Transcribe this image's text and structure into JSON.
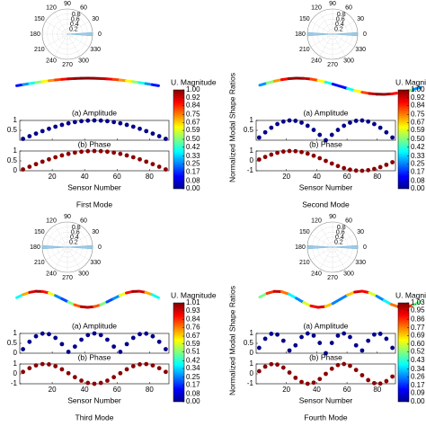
{
  "chart_data": [
    {
      "type": "scatter",
      "caption": "First Mode",
      "x": [
        2,
        6,
        10,
        14,
        18,
        22,
        26,
        30,
        34,
        38,
        42,
        46,
        50,
        54,
        58,
        62,
        66,
        70,
        74,
        78,
        82,
        86,
        90
      ],
      "xlim": [
        0,
        92
      ],
      "xticks": [
        20,
        40,
        60,
        80
      ],
      "xlabel": "Sensor Number",
      "amplitude": {
        "title": "(a) Amplitude",
        "color": "#00008b",
        "ylim": [
          0,
          1
        ],
        "yticks": [
          0.5,
          1
        ],
        "values": [
          0.068,
          0.203,
          0.335,
          0.46,
          0.577,
          0.683,
          0.776,
          0.854,
          0.917,
          0.963,
          0.991,
          1,
          0.991,
          0.963,
          0.917,
          0.854,
          0.776,
          0.683,
          0.577,
          0.46,
          0.335,
          0.203,
          0.068
        ]
      },
      "phase": {
        "title": "(b) Phase",
        "color": "#8b0000",
        "ylim": [
          0,
          1
        ],
        "yticks": [
          0,
          0.5,
          1
        ],
        "values": [
          0.068,
          0.203,
          0.335,
          0.46,
          0.577,
          0.683,
          0.776,
          0.854,
          0.917,
          0.963,
          0.991,
          1,
          0.991,
          0.963,
          0.917,
          0.854,
          0.776,
          0.683,
          0.577,
          0.46,
          0.335,
          0.203,
          0.068
        ]
      },
      "colorbar": {
        "title": "U. Magnitude",
        "lim": [
          0,
          1
        ],
        "ticks": [
          {
            "value": 1,
            "label": "1.00"
          },
          {
            "value": 0.92,
            "label": "0.92"
          },
          {
            "value": 0.84,
            "label": "0.84"
          },
          {
            "value": 0.75,
            "label": "0.75"
          },
          {
            "value": 0.67,
            "label": "0.67"
          },
          {
            "value": 0.59,
            "label": "0.59"
          },
          {
            "value": 0.5,
            "label": "0.50"
          },
          {
            "value": 0.42,
            "label": "0.42"
          },
          {
            "value": 0.33,
            "label": "0.33"
          },
          {
            "value": 0.25,
            "label": "0.25"
          },
          {
            "value": 0.17,
            "label": "0.17"
          },
          {
            "value": 0.08,
            "label": "0.08"
          },
          {
            "value": 0,
            "label": "0.00"
          }
        ]
      },
      "polar": {
        "theta": [
          0
        ],
        "r": [
          1
        ],
        "rlim": [
          0,
          1
        ],
        "rticks": [
          0.2,
          0.4,
          0.6,
          0.8
        ],
        "thetaticks": [
          0,
          30,
          60,
          90,
          120,
          150,
          180,
          210,
          240,
          270,
          300,
          330
        ],
        "color": "#9ecae1"
      }
    },
    {
      "type": "scatter",
      "caption": "Second Mode",
      "ylabel": "Normalized Modal Shape Ratios",
      "x": [
        2,
        6,
        10,
        14,
        18,
        22,
        26,
        30,
        34,
        38,
        42,
        46,
        50,
        54,
        58,
        62,
        66,
        70,
        74,
        78,
        82,
        86,
        90
      ],
      "xlim": [
        0,
        92
      ],
      "xticks": [
        20,
        40,
        60,
        80
      ],
      "xlabel": "Sensor Number",
      "amplitude": {
        "title": "(a) Amplitude",
        "color": "#00008b",
        "ylim": [
          0,
          1
        ],
        "yticks": [
          0.5,
          1
        ],
        "values": [
          0.136,
          0.398,
          0.631,
          0.817,
          0.942,
          0.998,
          0.979,
          0.888,
          0.731,
          0.52,
          0.27,
          0,
          0.27,
          0.52,
          0.731,
          0.888,
          0.979,
          0.998,
          0.942,
          0.817,
          0.631,
          0.398,
          0.136
        ]
      },
      "phase": {
        "title": "(b) Phase",
        "color": "#8b0000",
        "ylim": [
          -1,
          1
        ],
        "yticks": [
          -1,
          0,
          1
        ],
        "values": [
          0.136,
          0.398,
          0.631,
          0.817,
          0.942,
          0.998,
          0.979,
          0.888,
          0.731,
          0.52,
          0.27,
          0,
          -0.27,
          -0.52,
          -0.731,
          -0.888,
          -0.979,
          -0.998,
          -0.942,
          -0.817,
          -0.631,
          -0.398,
          -0.136
        ]
      },
      "colorbar": {
        "title": "U. Magnitude",
        "lim": [
          0,
          1
        ],
        "ticks": [
          {
            "value": 1,
            "label": "1.00"
          },
          {
            "value": 0.92,
            "label": "0.92"
          },
          {
            "value": 0.84,
            "label": "0.84"
          },
          {
            "value": 0.75,
            "label": "0.75"
          },
          {
            "value": 0.67,
            "label": "0.67"
          },
          {
            "value": 0.59,
            "label": "0.59"
          },
          {
            "value": 0.5,
            "label": "0.50"
          },
          {
            "value": 0.42,
            "label": "0.42"
          },
          {
            "value": 0.33,
            "label": "0.33"
          },
          {
            "value": 0.25,
            "label": "0.25"
          },
          {
            "value": 0.17,
            "label": "0.17"
          },
          {
            "value": 0.08,
            "label": "0.08"
          },
          {
            "value": 0,
            "label": "0.00"
          }
        ]
      },
      "polar": {
        "theta": [
          0,
          180
        ],
        "r": [
          1,
          1
        ],
        "rlim": [
          0,
          1
        ],
        "rticks": [
          0.2,
          0.4,
          0.6,
          0.8
        ],
        "thetaticks": [
          0,
          30,
          60,
          90,
          120,
          150,
          180,
          210,
          240,
          270,
          300,
          330
        ],
        "color": "#9ecae1"
      }
    },
    {
      "type": "scatter",
      "caption": "Third Mode",
      "x": [
        2,
        6,
        10,
        14,
        18,
        22,
        26,
        30,
        34,
        38,
        42,
        46,
        50,
        54,
        58,
        62,
        66,
        70,
        74,
        78,
        82,
        86,
        90
      ],
      "xlim": [
        0,
        92
      ],
      "xticks": [
        20,
        40,
        60,
        80
      ],
      "xlabel": "Sensor Number",
      "amplitude": {
        "title": "(a) Amplitude",
        "color": "#00008b",
        "ylim": [
          0,
          1
        ],
        "yticks": [
          0,
          0.5,
          1
        ],
        "values": [
          0.203,
          0.577,
          0.854,
          0.991,
          0.963,
          0.776,
          0.46,
          0.068,
          0.335,
          0.683,
          0.917,
          1,
          0.917,
          0.683,
          0.335,
          0.068,
          0.46,
          0.776,
          0.963,
          0.991,
          0.854,
          0.577,
          0.203
        ]
      },
      "phase": {
        "title": "(b) Phase",
        "color": "#8b0000",
        "ylim": [
          -1,
          1
        ],
        "yticks": [
          -1,
          0,
          1
        ],
        "values": [
          0.203,
          0.577,
          0.854,
          0.991,
          0.963,
          0.776,
          0.46,
          0.068,
          -0.335,
          -0.683,
          -0.917,
          -1,
          -0.917,
          -0.683,
          -0.335,
          0.068,
          0.46,
          0.776,
          0.963,
          0.991,
          0.854,
          0.577,
          0.203
        ]
      },
      "colorbar": {
        "title": "U. Magnitude",
        "lim": [
          0,
          1.01
        ],
        "ticks": [
          {
            "value": 1.01,
            "label": "1.01"
          },
          {
            "value": 0.93,
            "label": "0.93"
          },
          {
            "value": 0.84,
            "label": "0.84"
          },
          {
            "value": 0.76,
            "label": "0.76"
          },
          {
            "value": 0.67,
            "label": "0.67"
          },
          {
            "value": 0.59,
            "label": "0.59"
          },
          {
            "value": 0.51,
            "label": "0.51"
          },
          {
            "value": 0.42,
            "label": "0.42"
          },
          {
            "value": 0.34,
            "label": "0.34"
          },
          {
            "value": 0.25,
            "label": "0.25"
          },
          {
            "value": 0.17,
            "label": "0.17"
          },
          {
            "value": 0.08,
            "label": "0.08"
          },
          {
            "value": 0,
            "label": "0.00"
          }
        ]
      },
      "polar": {
        "theta": [
          0,
          180
        ],
        "r": [
          1,
          1
        ],
        "rlim": [
          0,
          1
        ],
        "rticks": [
          0.2,
          0.4,
          0.6,
          0.8
        ],
        "thetaticks": [
          0,
          30,
          60,
          90,
          120,
          150,
          180,
          210,
          240,
          270,
          300,
          330
        ],
        "color": "#9ecae1"
      }
    },
    {
      "type": "scatter",
      "caption": "Fourth Mode",
      "ylabel": "Normalized Modal Shape Ratios",
      "x": [
        2,
        6,
        10,
        14,
        18,
        22,
        26,
        30,
        34,
        38,
        42,
        46,
        50,
        54,
        58,
        62,
        66,
        70,
        74,
        78,
        82,
        86,
        90
      ],
      "xlim": [
        0,
        92
      ],
      "xticks": [
        20,
        40,
        60,
        80
      ],
      "xlabel": "Sensor Number",
      "amplitude": {
        "title": "(a) Amplitude",
        "color": "#00008b",
        "ylim": [
          0,
          1
        ],
        "yticks": [
          0,
          0.5,
          1
        ],
        "values": [
          0.27,
          0.731,
          0.979,
          0.942,
          0.631,
          0.136,
          0.398,
          0.817,
          0.998,
          0.888,
          0.52,
          0,
          0.52,
          0.888,
          0.998,
          0.817,
          0.398,
          0.136,
          0.631,
          0.942,
          0.979,
          0.731,
          0.27
        ]
      },
      "phase": {
        "title": "(b) Phase",
        "color": "#8b0000",
        "ylim": [
          -1,
          1
        ],
        "yticks": [
          -1,
          0,
          1
        ],
        "values": [
          0.27,
          0.731,
          0.979,
          0.942,
          0.631,
          0.136,
          -0.398,
          -0.817,
          -0.998,
          -0.888,
          -0.52,
          0,
          0.52,
          0.888,
          0.998,
          0.817,
          0.398,
          -0.136,
          -0.631,
          -0.942,
          -0.979,
          -0.731,
          -0.27
        ]
      },
      "colorbar": {
        "title": "U. Magnitude",
        "lim": [
          0,
          1.03
        ],
        "ticks": [
          {
            "value": 1.03,
            "label": "1.03"
          },
          {
            "value": 0.95,
            "label": "0.95"
          },
          {
            "value": 0.86,
            "label": "0.86"
          },
          {
            "value": 0.77,
            "label": "0.77"
          },
          {
            "value": 0.69,
            "label": "0.69"
          },
          {
            "value": 0.6,
            "label": "0.60"
          },
          {
            "value": 0.52,
            "label": "0.52"
          },
          {
            "value": 0.43,
            "label": "0.43"
          },
          {
            "value": 0.34,
            "label": "0.34"
          },
          {
            "value": 0.26,
            "label": "0.26"
          },
          {
            "value": 0.17,
            "label": "0.17"
          },
          {
            "value": 0.09,
            "label": "0.09"
          },
          {
            "value": 0,
            "label": "0.00"
          }
        ]
      },
      "polar": {
        "theta": [
          0,
          180
        ],
        "r": [
          1,
          1
        ],
        "rlim": [
          0,
          1
        ],
        "rticks": [
          0.2,
          0.4,
          0.6,
          0.8
        ],
        "thetaticks": [
          0,
          30,
          60,
          90,
          120,
          150,
          180,
          210,
          240,
          270,
          300,
          330
        ],
        "color": "#9ecae1"
      }
    }
  ]
}
